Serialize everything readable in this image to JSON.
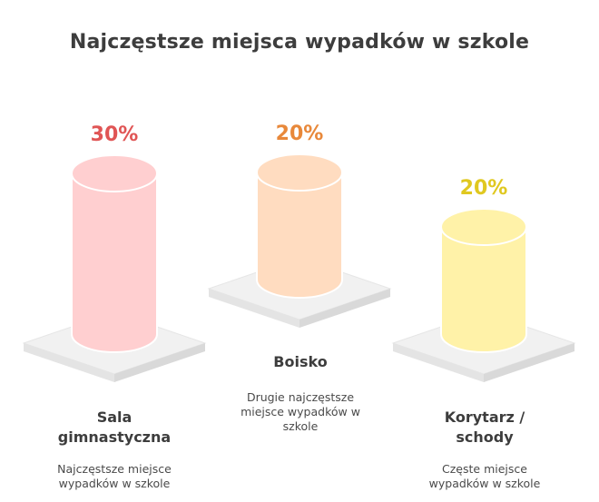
{
  "title": "Najczęstsze miejsca wypadków w szkole",
  "chart_data": {
    "type": "bar",
    "title": "Najczęstsze miejsca wypadków w szkole",
    "categories": [
      "Sala gimnastyczna",
      "Boisko",
      "Korytarz / schody"
    ],
    "values": [
      30,
      20,
      20
    ],
    "value_labels": [
      "30%",
      "20%",
      "20%"
    ],
    "descriptions": [
      "Najczęstsze miejsce wypadków w szkole",
      "Drugie najczęstsze miejsce wypadków w szkole",
      "Częste miejsce wypadków w szkole"
    ],
    "colors": {
      "fills": [
        "#ffcfd0",
        "#ffdcc0",
        "#fff2a8"
      ],
      "labels": [
        "#e05555",
        "#e8883a",
        "#e0c820"
      ]
    }
  },
  "items": [
    {
      "category": "Sala\ngimnastyczna",
      "value_label": "30%",
      "description": "Najczęstsze miejsce\nwypadków w szkole"
    },
    {
      "category": "Boisko",
      "value_label": "20%",
      "description": "Drugie najczęstsze\nmiejsce wypadków w\nszkole"
    },
    {
      "category": "Korytarz /\nschody",
      "value_label": "20%",
      "description": "Częste miejsce\nwypadków w szkole"
    }
  ]
}
